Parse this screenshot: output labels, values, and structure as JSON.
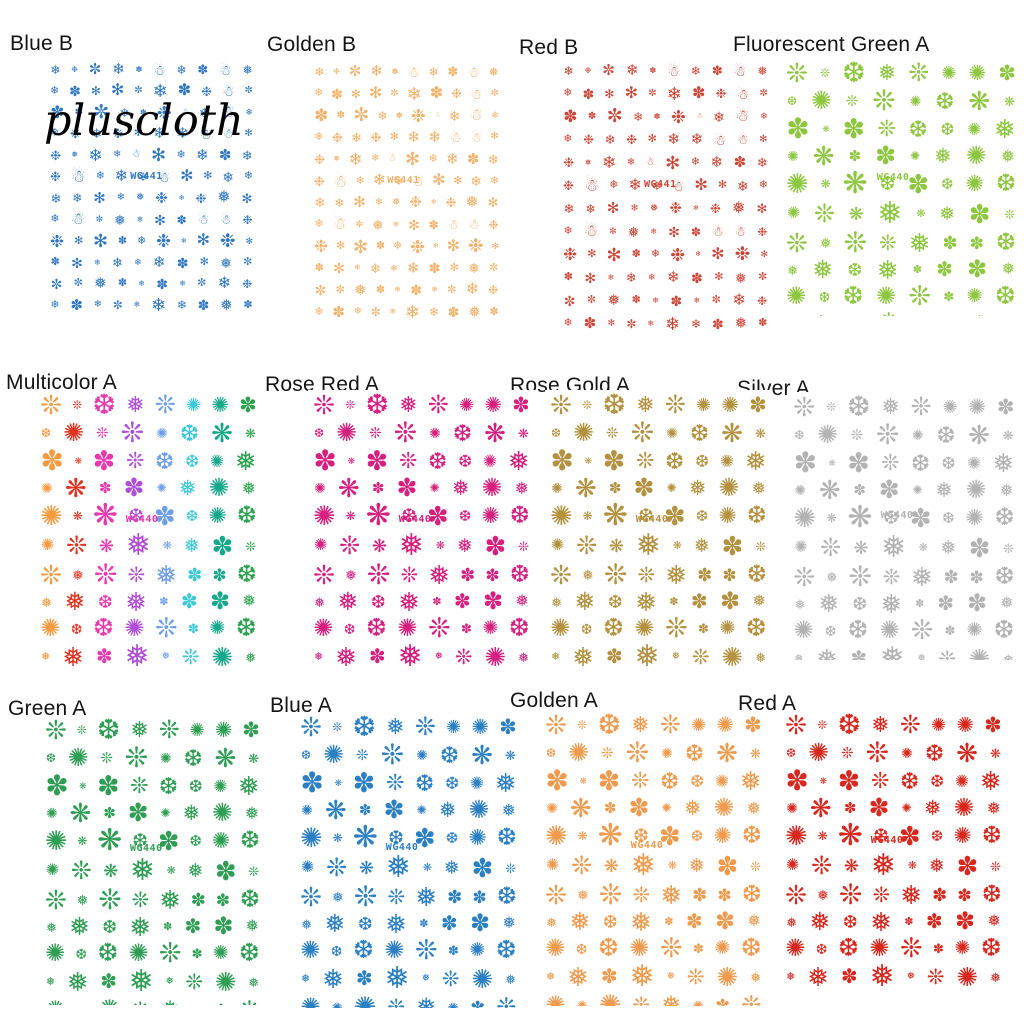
{
  "watermark": "pluscloth",
  "background_color": "#ffffff",
  "label_color": "#141414",
  "sheets": [
    {
      "label": "Blue B",
      "code": "WG441",
      "style": "outline",
      "color": "#3077c0"
    },
    {
      "label": "Golden B",
      "code": "WG441",
      "style": "outline",
      "color": "#f2b26b"
    },
    {
      "label": "Red B",
      "code": "WG441",
      "style": "outline",
      "color": "#cc4536"
    },
    {
      "label": "Fluorescent Green A",
      "code": "WG440",
      "style": "solid",
      "color": "#8dc63f"
    },
    {
      "label": "Multicolor A",
      "code": "WG440",
      "style": "solid",
      "color": "multicolor"
    },
    {
      "label": "Rose Red A",
      "code": "WG440",
      "style": "solid",
      "color": "#d61f7e"
    },
    {
      "label": "Rose Gold A",
      "code": "WG440",
      "style": "solid",
      "color": "#b3913f"
    },
    {
      "label": "Silver A",
      "code": "WG440",
      "style": "solid",
      "color": "#b3b3b3"
    },
    {
      "label": "Green A",
      "code": "WG440",
      "style": "solid",
      "color": "#2f9e54"
    },
    {
      "label": "Blue A",
      "code": "WG440",
      "style": "solid",
      "color": "#2b7fc3"
    },
    {
      "label": "Golden A",
      "code": "WG440",
      "style": "solid",
      "color": "#f09a4d"
    },
    {
      "label": "Red A",
      "code": "WG440",
      "style": "solid",
      "color": "#d8281e"
    }
  ],
  "multicolor_palette": [
    "#f59a3e",
    "#e03420",
    "#e838ae",
    "#b04fd6",
    "#6d9fe8",
    "#38c8d8",
    "#16a88a",
    "#2aa24e"
  ],
  "glyphs": {
    "outline": [
      "❄",
      "✻",
      "❄",
      "✼",
      "❅",
      "❄",
      "❉",
      "☃",
      "✽",
      "❄"
    ],
    "solid": [
      "❅",
      "❆",
      "❋",
      "✺",
      "❊",
      "✽",
      "❆",
      "❅"
    ]
  },
  "grid": {
    "outline": {
      "rows": 12,
      "cols": 10,
      "seed": 23,
      "sizes": [
        15,
        10,
        17,
        13,
        11,
        16,
        10,
        14,
        17,
        12,
        13,
        16,
        11,
        15,
        10,
        17,
        14,
        12,
        16,
        10
      ]
    },
    "solid": {
      "rows": 11,
      "cols": 8,
      "seed": 11,
      "sizes": [
        26,
        12,
        28,
        22,
        26,
        16,
        20,
        24,
        14,
        26,
        18,
        28,
        12,
        22,
        26,
        16
      ]
    }
  }
}
